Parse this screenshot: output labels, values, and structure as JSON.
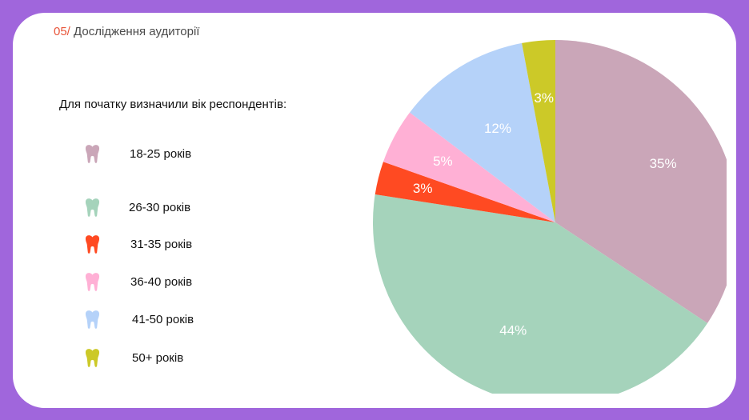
{
  "header": {
    "number": "05/",
    "title": " Дослідження аудиторії"
  },
  "intro": "Для початку визначили вік респондентів:",
  "legend": [
    {
      "label": "18-25 років",
      "icon": "tooth-icon",
      "color": "#caa6b8"
    },
    {
      "label": "26-30 років",
      "icon": "tooth-icon",
      "color": "#a5d3bb"
    },
    {
      "label": "31-35 років",
      "icon": "tooth-icon",
      "color": "#ff4a22"
    },
    {
      "label": "36-40 років",
      "icon": "tooth-icon",
      "color": "#ffb0d5"
    },
    {
      "label": "41-50 років",
      "icon": "tooth-icon",
      "color": "#b5d2f9"
    },
    {
      "label": "50+ років",
      "icon": "tooth-icon",
      "color": "#ccc928"
    }
  ],
  "chart_data": {
    "type": "pie",
    "title": "",
    "categories": [
      "18-25 років",
      "26-30 років",
      "31-35 років",
      "36-40 років",
      "41-50 років",
      "50+ років"
    ],
    "values": [
      35,
      44,
      3,
      5,
      12,
      3
    ],
    "labels": [
      "35%",
      "44%",
      "3%",
      "5%",
      "12%",
      "3%"
    ],
    "colors": [
      "#caa6b8",
      "#a5d3bb",
      "#ff4a22",
      "#ffb0d5",
      "#b5d2f9",
      "#ccc928"
    ],
    "start_angle": "12 o'clock",
    "direction": "clockwise",
    "legend_position": "left"
  },
  "colors": {
    "background": "#a066dc",
    "card": "#ffffff",
    "accent": "#e8553a"
  }
}
